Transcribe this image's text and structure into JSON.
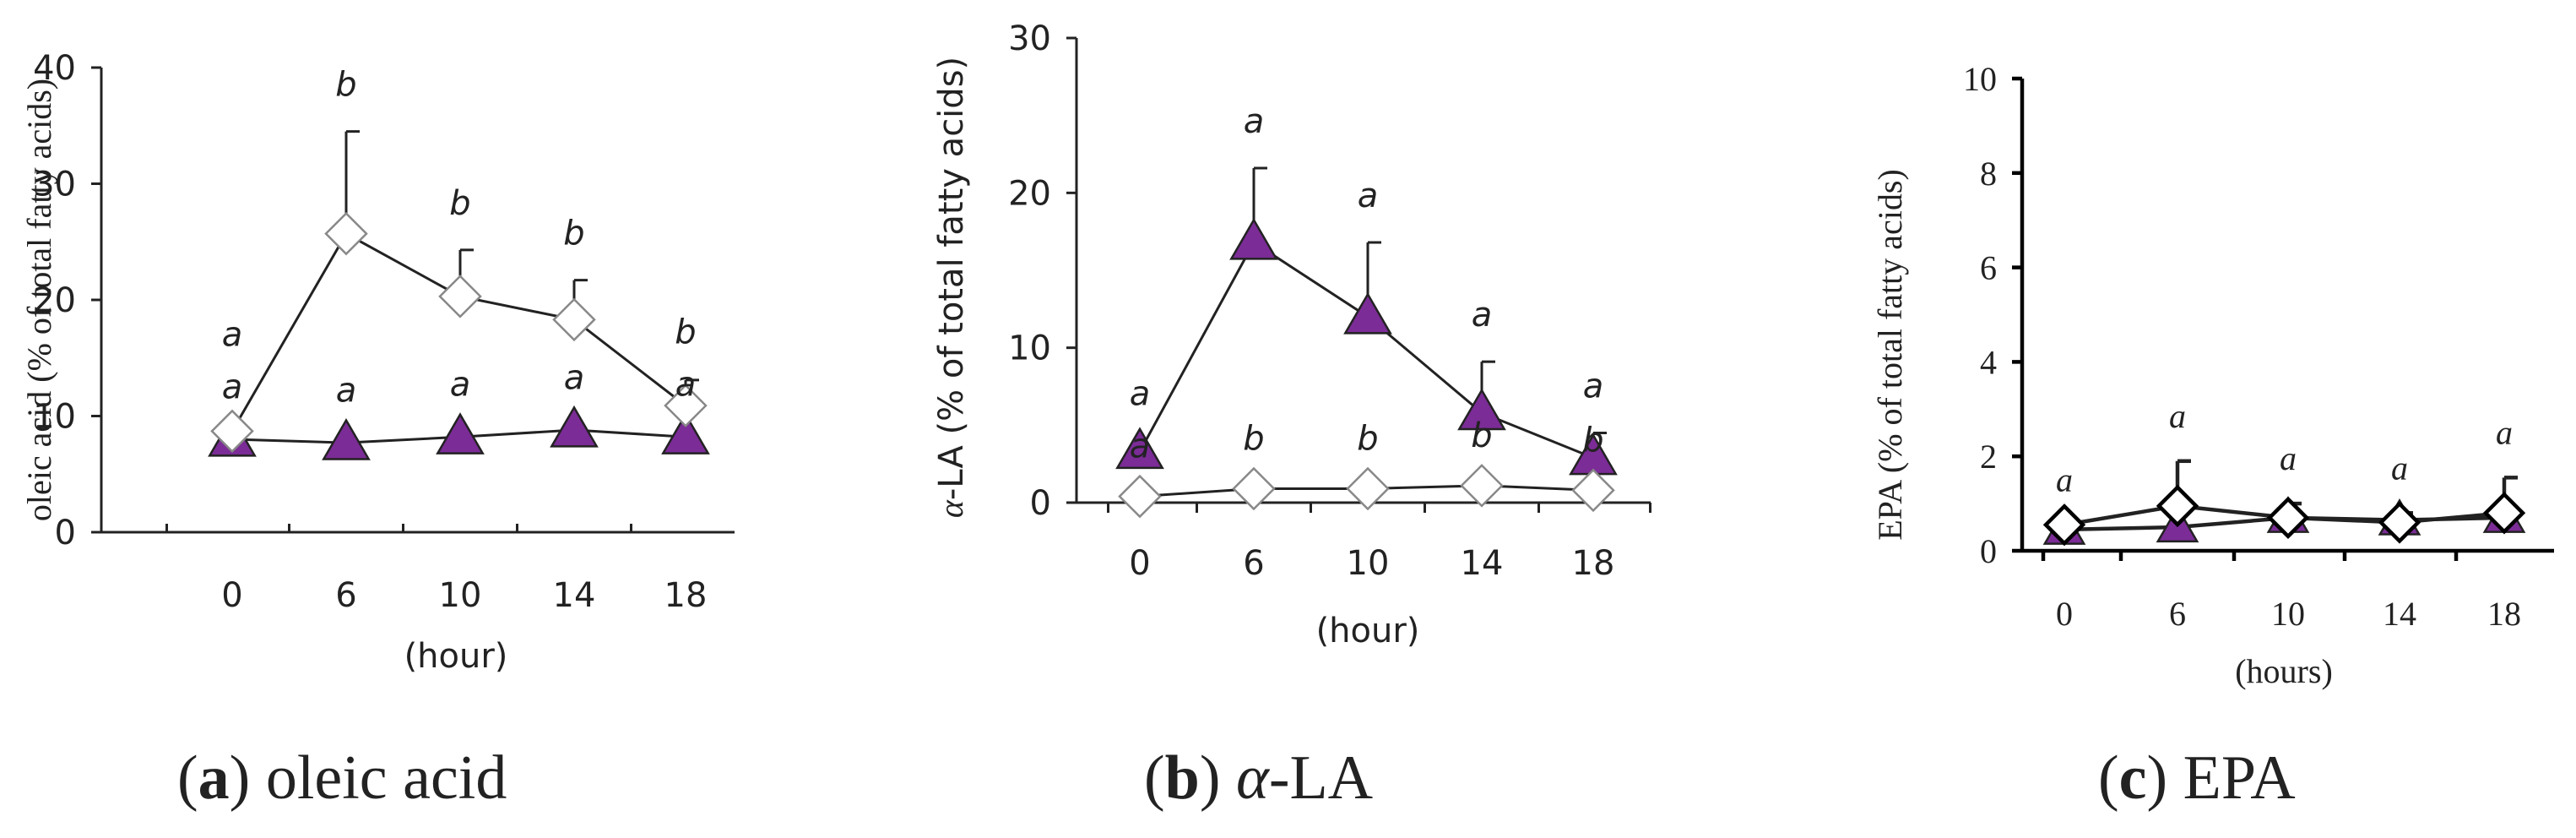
{
  "chart_data": [
    {
      "id": "a",
      "type": "line",
      "caption": {
        "letter": "a",
        "text": " oleic acid"
      },
      "xlabel": "(hour)",
      "ylabel": "oleic acid (% of total fatty acids)",
      "ylabel_prefix": "",
      "ylabel_italic": "",
      "categories": [
        "0",
        "6",
        "10",
        "14",
        "18"
      ],
      "ylim": [
        0,
        40
      ],
      "yticks": [
        0,
        10,
        20,
        30,
        40
      ],
      "series": [
        {
          "name": "triangle",
          "marker": "triangle",
          "color": "#7b2c96",
          "values": [
            8,
            7.7,
            8.2,
            8.8,
            8.2
          ],
          "error": [
            0,
            0,
            0,
            0,
            0
          ],
          "labels": [
            "a",
            "a",
            "a",
            "a",
            "a"
          ]
        },
        {
          "name": "diamond",
          "marker": "diamond",
          "color": "#ffffff",
          "values": [
            8.7,
            25.7,
            20.3,
            18.3,
            10.9
          ],
          "error": [
            0,
            8.8,
            4,
            3.4,
            2.2
          ],
          "labels": [
            "a",
            "b",
            "b",
            "b",
            "b"
          ]
        }
      ]
    },
    {
      "id": "b",
      "type": "line",
      "caption": {
        "letter": "b",
        "text": "-LA",
        "italic": "α"
      },
      "xlabel": "(hour)",
      "ylabel": "-LA (% of total fatty acids)",
      "ylabel_prefix": "",
      "ylabel_italic": "α",
      "categories": [
        "0",
        "6",
        "10",
        "14",
        "18"
      ],
      "ylim": [
        0,
        30
      ],
      "yticks": [
        0,
        10,
        20,
        30
      ],
      "series": [
        {
          "name": "triangle",
          "marker": "triangle",
          "color": "#7b2c96",
          "values": [
            3.3,
            16.8,
            12,
            5.8,
            2.9
          ],
          "error": [
            0,
            4.8,
            4.8,
            3.3,
            1.6
          ],
          "labels": [
            "a",
            "a",
            "a",
            "a",
            "a"
          ]
        },
        {
          "name": "diamond",
          "marker": "diamond",
          "color": "#ffffff",
          "values": [
            0.4,
            0.9,
            0.9,
            1.1,
            0.8
          ],
          "error": [
            0,
            0,
            0,
            0,
            0
          ],
          "labels": [
            "a",
            "b",
            "b",
            "b",
            "b"
          ]
        }
      ]
    },
    {
      "id": "c",
      "type": "line",
      "caption": {
        "letter": "c",
        "text": " EPA"
      },
      "xlabel": "(hours)",
      "ylabel": "EPA (% of total fatty acids)",
      "ylabel_prefix": "",
      "ylabel_italic": "",
      "categories": [
        "0",
        "6",
        "10",
        "14",
        "18"
      ],
      "ylim": [
        0,
        10
      ],
      "yticks": [
        0,
        2,
        4,
        6,
        8,
        10
      ],
      "series": [
        {
          "name": "triangle",
          "marker": "triangle",
          "color": "#7b2c96",
          "values": [
            0.45,
            0.5,
            0.7,
            0.65,
            0.7
          ],
          "error": [
            0,
            0,
            0,
            0,
            0
          ],
          "labels": [
            "a",
            "a",
            "a",
            "a",
            "a"
          ]
        },
        {
          "name": "diamond",
          "marker": "diamond",
          "color": "#ffffff",
          "values": [
            0.55,
            0.95,
            0.7,
            0.6,
            0.8
          ],
          "error": [
            0,
            0.95,
            0.3,
            0.2,
            0.75
          ],
          "labels": [
            "",
            "",
            "",
            "",
            ""
          ]
        }
      ]
    }
  ]
}
